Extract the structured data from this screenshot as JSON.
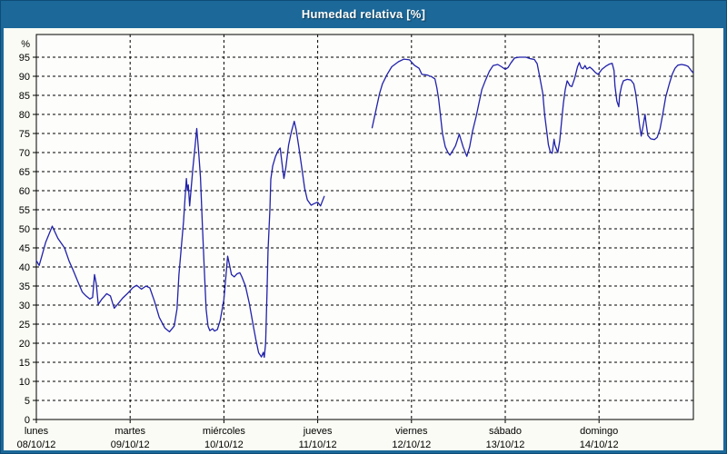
{
  "window": {
    "title": "Humedad relativa [%]"
  },
  "colors": {
    "titlebar_bg": "#1b6899",
    "frame": "#1b6899",
    "content_bg": "#f9fbf4",
    "plot_bg": "#fdfdfb",
    "grid": "#000000",
    "axis": "#000000",
    "label_text": "#000000",
    "line": "#2121aa"
  },
  "chart_data": {
    "type": "line",
    "title": "Humedad relativa [%]",
    "ylabel": "%",
    "ylim": [
      0,
      101
    ],
    "y_ticks": [
      0,
      5,
      10,
      15,
      20,
      25,
      30,
      35,
      40,
      45,
      50,
      55,
      60,
      65,
      70,
      75,
      80,
      85,
      90,
      95
    ],
    "x_unit": "days since Monday 00:00",
    "x_range": [
      0,
      7.01
    ],
    "x_ticks": [
      {
        "pos": 0,
        "day": "lunes",
        "date": "08/10/12"
      },
      {
        "pos": 1,
        "day": "martes",
        "date": "09/10/12"
      },
      {
        "pos": 2,
        "day": "miércoles",
        "date": "10/10/12"
      },
      {
        "pos": 3,
        "day": "jueves",
        "date": "11/10/12"
      },
      {
        "pos": 4,
        "day": "viernes",
        "date": "12/10/12"
      },
      {
        "pos": 5,
        "day": "sábado",
        "date": "13/10/12"
      },
      {
        "pos": 6,
        "day": "domingo",
        "date": "14/10/12"
      }
    ],
    "grid_style": "dashed",
    "legend": null,
    "series": [
      {
        "name": "Humedad relativa [%]",
        "color": "#2121aa",
        "segments": [
          [
            [
              0.0,
              41.7
            ],
            [
              0.03,
              40.4
            ],
            [
              0.06,
              43.0
            ],
            [
              0.1,
              46.5
            ],
            [
              0.17,
              50.7
            ],
            [
              0.23,
              47.5
            ],
            [
              0.3,
              45.0
            ],
            [
              0.35,
              41.5
            ],
            [
              0.39,
              39.3
            ],
            [
              0.44,
              36.3
            ],
            [
              0.49,
              33.4
            ],
            [
              0.53,
              32.4
            ],
            [
              0.57,
              31.6
            ],
            [
              0.6,
              32.0
            ],
            [
              0.62,
              38.0
            ],
            [
              0.64,
              35.5
            ],
            [
              0.66,
              30.2
            ],
            [
              0.7,
              31.6
            ],
            [
              0.75,
              33.0
            ],
            [
              0.79,
              32.4
            ],
            [
              0.83,
              29.2
            ],
            [
              0.87,
              30.3
            ],
            [
              0.92,
              31.8
            ],
            [
              0.97,
              33.0
            ],
            [
              1.03,
              34.6
            ],
            [
              1.07,
              35.2
            ],
            [
              1.12,
              34.2
            ],
            [
              1.17,
              35.0
            ],
            [
              1.21,
              34.5
            ],
            [
              1.26,
              31.0
            ],
            [
              1.31,
              26.8
            ],
            [
              1.37,
              24.0
            ],
            [
              1.42,
              23.0
            ],
            [
              1.47,
              24.5
            ],
            [
              1.5,
              29.0
            ],
            [
              1.52,
              38.0
            ],
            [
              1.55,
              46.5
            ],
            [
              1.57,
              52.0
            ],
            [
              1.585,
              58.0
            ],
            [
              1.6,
              63.2
            ],
            [
              1.61,
              60.0
            ],
            [
              1.62,
              61.5
            ],
            [
              1.635,
              56.0
            ],
            [
              1.65,
              60.5
            ],
            [
              1.67,
              66.0
            ],
            [
              1.69,
              71.0
            ],
            [
              1.71,
              76.3
            ],
            [
              1.73,
              70.5
            ],
            [
              1.75,
              63.5
            ],
            [
              1.77,
              51.0
            ],
            [
              1.79,
              40.0
            ],
            [
              1.81,
              29.0
            ],
            [
              1.83,
              24.5
            ],
            [
              1.85,
              23.3
            ],
            [
              1.88,
              23.8
            ],
            [
              1.9,
              23.2
            ],
            [
              1.93,
              23.6
            ],
            [
              1.96,
              26.0
            ],
            [
              2.0,
              31.5
            ],
            [
              2.04,
              42.8
            ],
            [
              2.06,
              40.5
            ],
            [
              2.08,
              38.0
            ],
            [
              2.11,
              37.4
            ],
            [
              2.14,
              38.2
            ],
            [
              2.17,
              38.5
            ],
            [
              2.19,
              37.5
            ],
            [
              2.23,
              35.0
            ],
            [
              2.27,
              30.5
            ],
            [
              2.31,
              25.0
            ],
            [
              2.34,
              21.0
            ],
            [
              2.37,
              17.5
            ],
            [
              2.4,
              16.4
            ],
            [
              2.42,
              17.6
            ],
            [
              2.43,
              16.3
            ],
            [
              2.445,
              20.0
            ],
            [
              2.46,
              34.0
            ],
            [
              2.47,
              44.0
            ],
            [
              2.49,
              55.0
            ],
            [
              2.5,
              63.0
            ],
            [
              2.52,
              66.5
            ],
            [
              2.55,
              69.0
            ],
            [
              2.58,
              70.6
            ],
            [
              2.6,
              71.2
            ],
            [
              2.62,
              67.0
            ],
            [
              2.64,
              63.2
            ],
            [
              2.66,
              66.0
            ],
            [
              2.69,
              72.0
            ],
            [
              2.72,
              75.5
            ],
            [
              2.75,
              78.2
            ],
            [
              2.77,
              76.0
            ],
            [
              2.8,
              71.2
            ],
            [
              2.83,
              66.0
            ],
            [
              2.86,
              60.7
            ],
            [
              2.89,
              57.6
            ],
            [
              2.93,
              56.2
            ],
            [
              2.96,
              56.6
            ],
            [
              3.0,
              57.0
            ],
            [
              3.03,
              56.0
            ],
            [
              3.07,
              58.5
            ]
          ],
          [
            [
              3.58,
              76.5
            ],
            [
              3.62,
              81.0
            ],
            [
              3.66,
              85.5
            ],
            [
              3.69,
              88.0
            ],
            [
              3.74,
              90.5
            ],
            [
              3.79,
              92.5
            ],
            [
              3.86,
              93.8
            ],
            [
              3.92,
              94.5
            ],
            [
              3.98,
              94.3
            ],
            [
              4.03,
              92.9
            ],
            [
              4.08,
              92.1
            ],
            [
              4.11,
              90.5
            ],
            [
              4.17,
              90.3
            ],
            [
              4.22,
              89.8
            ],
            [
              4.25,
              89.3
            ],
            [
              4.27,
              87.0
            ],
            [
              4.29,
              84.0
            ],
            [
              4.31,
              79.5
            ],
            [
              4.33,
              75.0
            ],
            [
              4.36,
              71.5
            ],
            [
              4.39,
              70.0
            ],
            [
              4.41,
              69.3
            ],
            [
              4.44,
              70.5
            ],
            [
              4.47,
              71.8
            ],
            [
              4.51,
              74.8
            ],
            [
              4.55,
              71.5
            ],
            [
              4.59,
              69.0
            ],
            [
              4.62,
              71.5
            ],
            [
              4.65,
              75.5
            ],
            [
              4.69,
              79.5
            ],
            [
              4.72,
              83.0
            ],
            [
              4.75,
              86.5
            ],
            [
              4.79,
              89.0
            ],
            [
              4.83,
              91.3
            ],
            [
              4.87,
              92.8
            ],
            [
              4.92,
              93.1
            ],
            [
              4.96,
              92.5
            ],
            [
              5.0,
              91.8
            ],
            [
              5.03,
              92.3
            ],
            [
              5.06,
              93.5
            ],
            [
              5.1,
              94.8
            ],
            [
              5.15,
              95.0
            ],
            [
              5.22,
              95.0
            ],
            [
              5.27,
              94.6
            ],
            [
              5.31,
              94.4
            ],
            [
              5.34,
              93.3
            ],
            [
              5.37,
              89.5
            ],
            [
              5.4,
              85.5
            ],
            [
              5.42,
              80.0
            ],
            [
              5.44,
              76.0
            ],
            [
              5.46,
              72.0
            ],
            [
              5.48,
              70.2
            ],
            [
              5.5,
              69.8
            ],
            [
              5.52,
              73.5
            ],
            [
              5.53,
              72.0
            ],
            [
              5.56,
              70.0
            ],
            [
              5.58,
              73.0
            ],
            [
              5.6,
              78.0
            ],
            [
              5.62,
              83.0
            ],
            [
              5.64,
              86.5
            ],
            [
              5.66,
              88.8
            ],
            [
              5.69,
              87.5
            ],
            [
              5.71,
              87.3
            ],
            [
              5.74,
              89.5
            ],
            [
              5.77,
              92.5
            ],
            [
              5.79,
              93.6
            ],
            [
              5.81,
              92.2
            ],
            [
              5.83,
              92.0
            ],
            [
              5.85,
              92.8
            ],
            [
              5.87,
              91.9
            ],
            [
              5.9,
              92.4
            ],
            [
              5.93,
              91.8
            ],
            [
              5.96,
              91.0
            ],
            [
              5.99,
              90.5
            ],
            [
              6.03,
              91.8
            ],
            [
              6.07,
              92.6
            ],
            [
              6.11,
              93.2
            ],
            [
              6.14,
              93.4
            ],
            [
              6.16,
              91.5
            ],
            [
              6.17,
              87.5
            ],
            [
              6.19,
              83.5
            ],
            [
              6.21,
              82.0
            ],
            [
              6.22,
              85.0
            ],
            [
              6.24,
              87.5
            ],
            [
              6.26,
              88.8
            ],
            [
              6.3,
              89.2
            ],
            [
              6.34,
              89.0
            ],
            [
              6.37,
              88.0
            ],
            [
              6.39,
              85.7
            ],
            [
              6.41,
              82.0
            ],
            [
              6.43,
              77.5
            ],
            [
              6.45,
              74.3
            ],
            [
              6.47,
              77.0
            ],
            [
              6.49,
              80.0
            ],
            [
              6.5,
              78.0
            ],
            [
              6.52,
              74.5
            ],
            [
              6.55,
              73.6
            ],
            [
              6.59,
              73.4
            ],
            [
              6.62,
              74.0
            ],
            [
              6.65,
              76.2
            ],
            [
              6.68,
              80.2
            ],
            [
              6.71,
              84.5
            ],
            [
              6.75,
              88.1
            ],
            [
              6.78,
              90.5
            ],
            [
              6.81,
              92.1
            ],
            [
              6.84,
              92.9
            ],
            [
              6.88,
              93.1
            ],
            [
              6.92,
              92.9
            ],
            [
              6.95,
              92.6
            ],
            [
              6.98,
              91.6
            ],
            [
              7.0,
              91.0
            ]
          ]
        ]
      }
    ]
  }
}
